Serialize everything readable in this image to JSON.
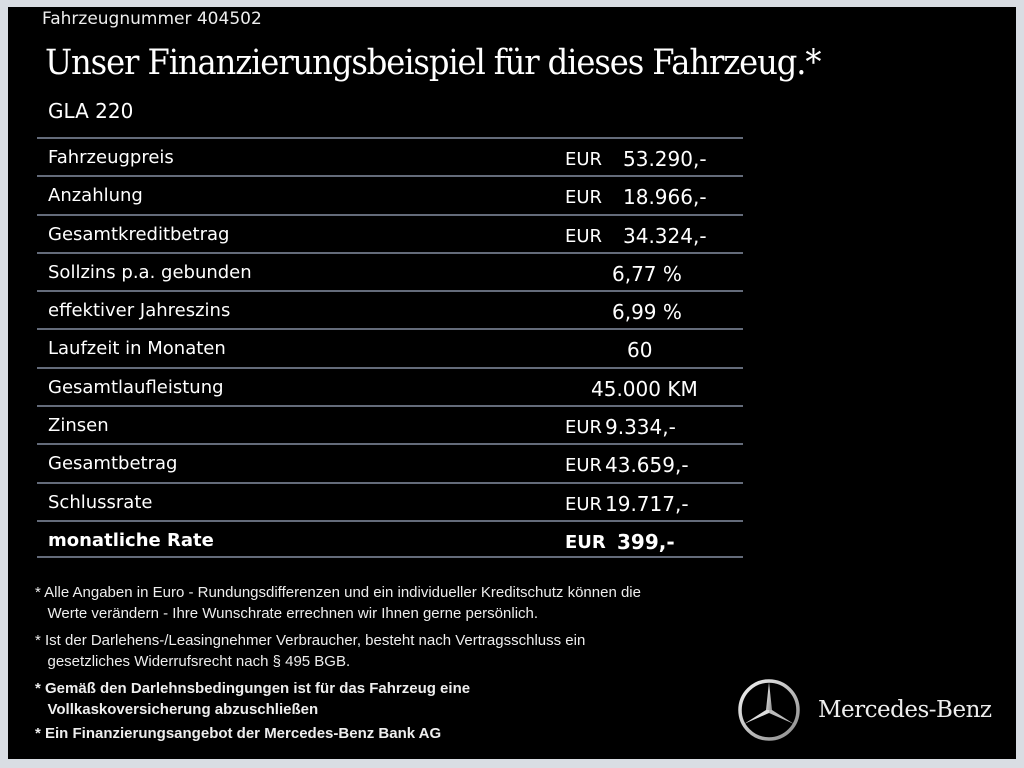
{
  "vehicle_number": "Fahrzeugnummer  404502",
  "title": "Unser Finanzierungsbeispiel für dieses Fahrzeug.*",
  "model": "GLA 220",
  "rows": [
    {
      "label": "Fahrzeugpreis",
      "currency": "EUR",
      "value": "53.290,-"
    },
    {
      "label": "Anzahlung",
      "currency": "EUR",
      "value": "18.966,-"
    },
    {
      "label": "Gesamtkreditbetrag",
      "currency": "EUR",
      "value": "34.324,-"
    },
    {
      "label": "Sollzins p.a. gebunden",
      "currency": "",
      "value": "6,77 %"
    },
    {
      "label": "effektiver Jahreszins",
      "currency": "",
      "value": "6,99 %"
    },
    {
      "label": "Laufzeit in Monaten",
      "currency": "",
      "value": "60"
    },
    {
      "label": "Gesamtlaufleistung",
      "currency": "",
      "value": "45.000 KM"
    },
    {
      "label": "Zinsen",
      "currency": "EUR",
      "value": "9.334,-"
    },
    {
      "label": "Gesamtbetrag",
      "currency": "EUR",
      "value": "43.659,-"
    },
    {
      "label": "Schlussrate",
      "currency": "EUR",
      "value": "19.717,-"
    },
    {
      "label": "monatliche Rate",
      "currency": "EUR",
      "value": "399,-"
    }
  ],
  "footnotes": [
    "* Alle Angaben in Euro - Rundungsdifferenzen und ein individueller Kreditschutz können die\n   Werte verändern - Ihre Wunschrate errechnen wir Ihnen gerne persönlich.",
    "* Ist der Darlehens-/Leasingnehmer Verbraucher, besteht nach Vertragsschluss ein\n   gesetzliches Widerrufsrecht nach § 495 BGB.",
    "* Gemäß den Darlehnsbedingungen ist für das Fahrzeug eine\n   Vollkaskoversicherung abzuschließen",
    "* Ein Finanzierungsangebot der Mercedes-Benz Bank AG"
  ],
  "brand": "Mercedes-Benz",
  "colors": {
    "background": "#000000",
    "divider": "#646b7a",
    "text": "#ffffff"
  }
}
